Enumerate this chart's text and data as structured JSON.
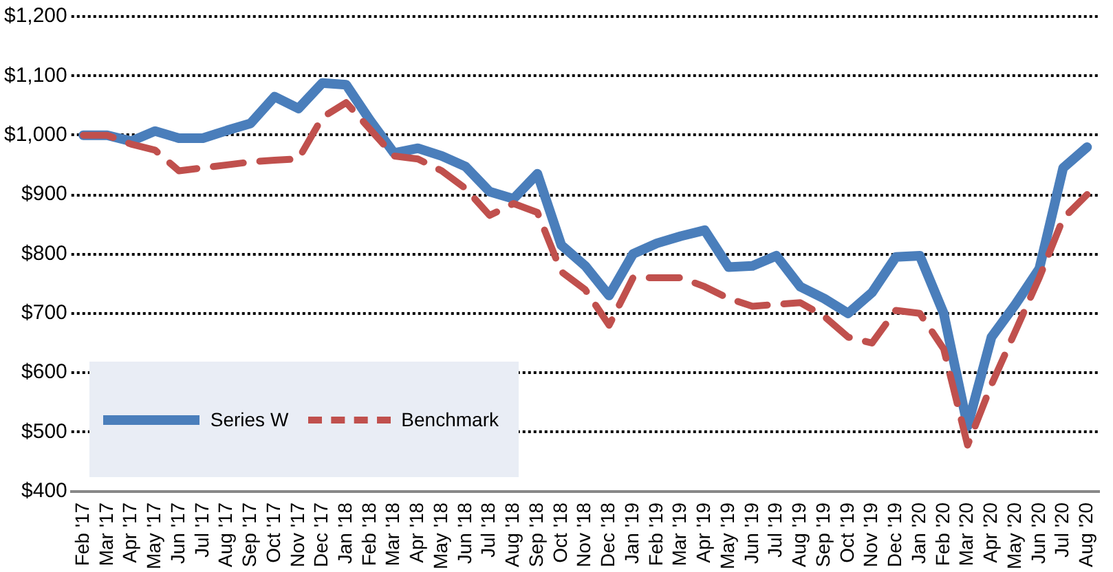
{
  "chart_data": {
    "type": "line",
    "categories": [
      "Feb '17",
      "Mar '17",
      "Apr '17",
      "May '17",
      "Jun '17",
      "Jul '17",
      "Aug '17",
      "Sep '17",
      "Oct '17",
      "Nov '17",
      "Dec '17",
      "Jan '18",
      "Feb '18",
      "Mar '18",
      "Apr '18",
      "May '18",
      "Jun '18",
      "Jul '18",
      "Aug '18",
      "Sep '18",
      "Oct '18",
      "Nov '18",
      "Dec '18",
      "Jan '19",
      "Feb '19",
      "Mar '19",
      "Apr '19",
      "May '19",
      "Jun '19",
      "Jul '19",
      "Aug '19",
      "Sep '19",
      "Oct '19",
      "Nov '19",
      "Dec '19",
      "Jan '20",
      "Feb '20",
      "Mar '20",
      "Apr '20",
      "May '20",
      "Jun '20",
      "Jul '20",
      "Aug '20"
    ],
    "series": [
      {
        "name": "Series W",
        "color": "#4a7ebb",
        "line_style": "solid",
        "values": [
          1000,
          1000,
          990,
          1007,
          995,
          995,
          1008,
          1020,
          1065,
          1045,
          1088,
          1085,
          1025,
          970,
          978,
          965,
          947,
          905,
          893,
          935,
          815,
          780,
          730,
          800,
          818,
          830,
          840,
          778,
          780,
          797,
          745,
          725,
          700,
          735,
          795,
          797,
          700,
          510,
          660,
          715,
          775,
          945,
          980
        ]
      },
      {
        "name": "Benchmark",
        "color": "#c0504d",
        "line_style": "dashed",
        "values": [
          1000,
          1000,
          985,
          975,
          940,
          945,
          950,
          955,
          958,
          960,
          1030,
          1055,
          1010,
          965,
          960,
          940,
          910,
          865,
          885,
          870,
          770,
          740,
          680,
          760,
          760,
          760,
          745,
          725,
          712,
          715,
          718,
          695,
          660,
          650,
          705,
          700,
          640,
          478,
          580,
          670,
          760,
          860,
          900
        ]
      }
    ],
    "ylim": [
      400,
      1200
    ],
    "yticks": [
      {
        "value": 400,
        "label": "$400"
      },
      {
        "value": 500,
        "label": "$500"
      },
      {
        "value": 600,
        "label": "$600"
      },
      {
        "value": 700,
        "label": "$700"
      },
      {
        "value": 800,
        "label": "$800"
      },
      {
        "value": 900,
        "label": "$900"
      },
      {
        "value": 1000,
        "label": "$1,000"
      },
      {
        "value": 1100,
        "label": "$1,100"
      },
      {
        "value": 1200,
        "label": "$1,200"
      }
    ],
    "grid": "y",
    "legend": "bottom left",
    "marker": "none"
  }
}
